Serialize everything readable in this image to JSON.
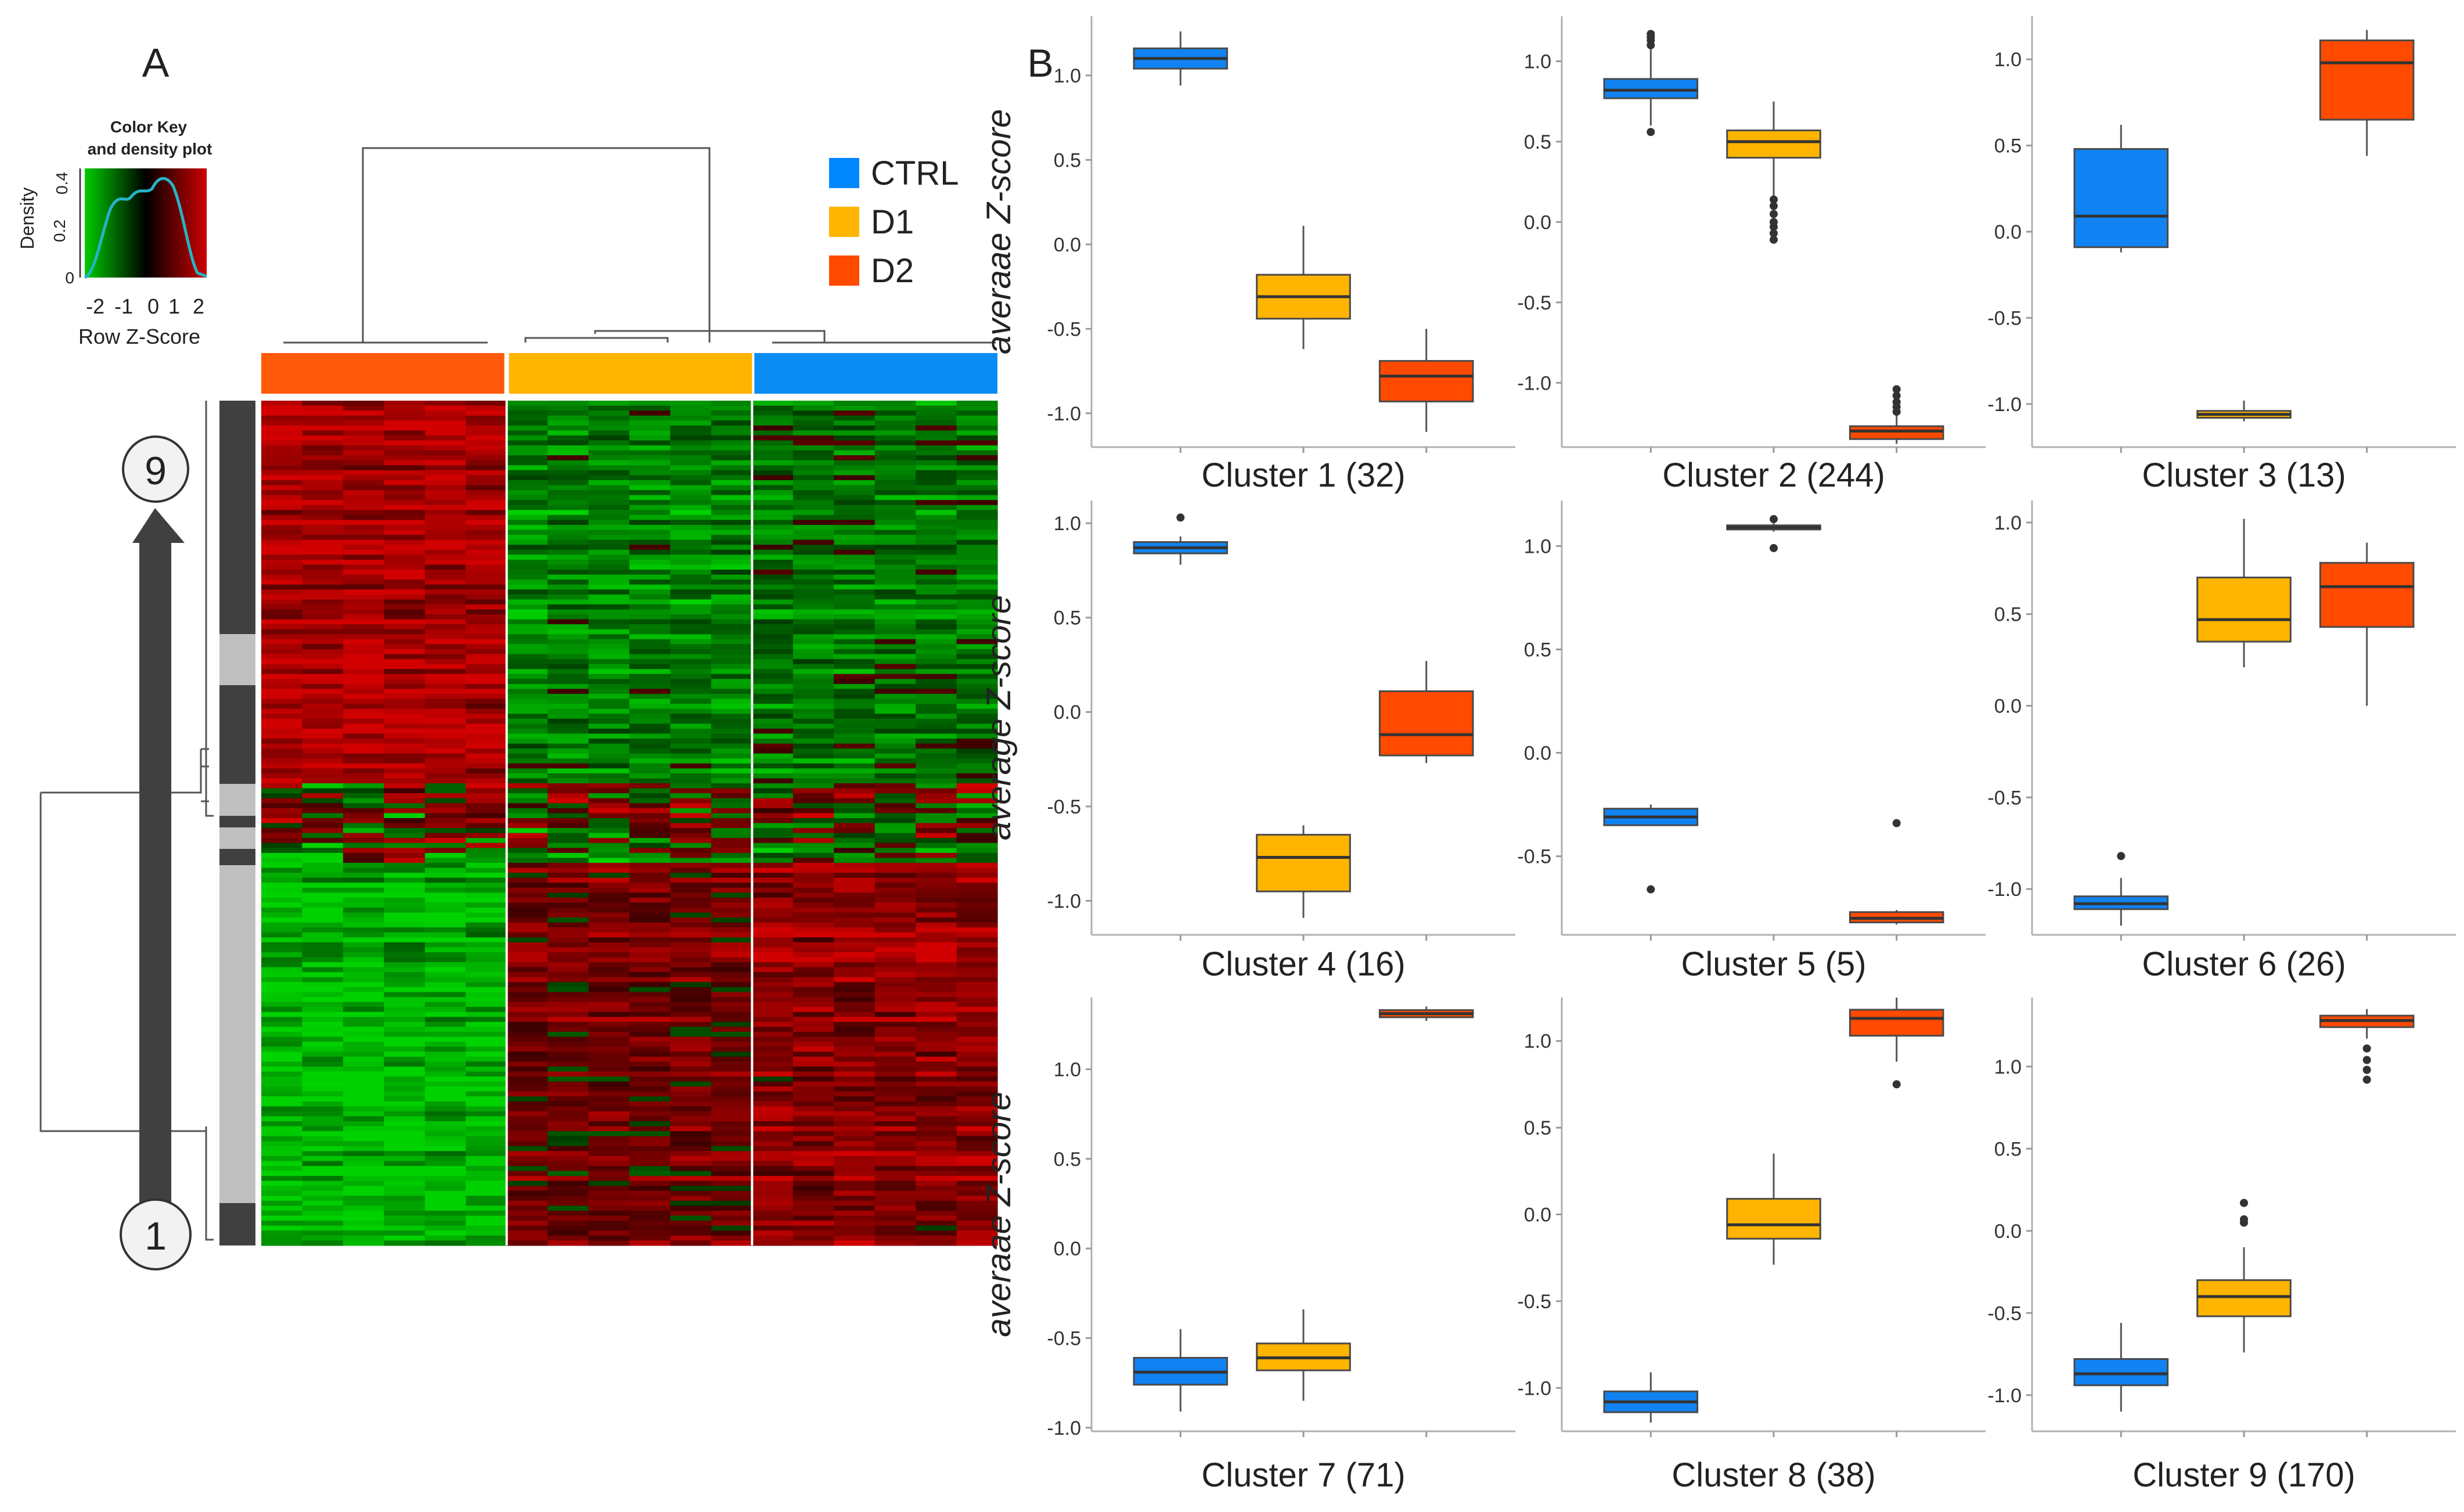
{
  "panel_a": {
    "label": "A",
    "color_key": {
      "title_line1": "Color Key",
      "title_line2": "and density plot",
      "ylabel": "Density",
      "xlabel": "Row Z-Score",
      "x_ticks": [
        "-2",
        "-1",
        "0",
        "1",
        "2"
      ],
      "y_ticks": [
        "0",
        "0.2",
        "0.4"
      ],
      "colors": {
        "low": "#00cc00",
        "mid": "#000000",
        "high": "#cc0000"
      }
    },
    "legend": [
      {
        "label": "CTRL",
        "color": "#0088ff"
      },
      {
        "label": "D1",
        "color": "#ffb400"
      },
      {
        "label": "D2",
        "color": "#ff4a00"
      }
    ],
    "column_groups": [
      {
        "name": "D2",
        "color": "#ff5a0a",
        "columns": 6
      },
      {
        "name": "D1",
        "color": "#ffb400",
        "columns": 6
      },
      {
        "name": "CTRL",
        "color": "#0a8cf2",
        "columns": 6
      }
    ],
    "arrow": {
      "top_label": "9",
      "bottom_label": "1"
    }
  },
  "panel_b": {
    "label": "B",
    "ylabel_main": "average Z-score",
    "ylabel_alt": "averaae Z-score",
    "group_colors": {
      "CTRL": "#1182f1",
      "D1": "#ffb400",
      "D2": "#ff4a00"
    }
  },
  "chart_data": [
    {
      "type": "boxplot",
      "title": "Cluster 1 (32)",
      "ylabel": "averaae Z-score",
      "ylim": [
        -1.2,
        1.35
      ],
      "yticks": [
        -1.0,
        -0.5,
        0.0,
        0.5,
        1.0
      ],
      "categories": [
        "CTRL",
        "D1",
        "D2"
      ],
      "boxes": [
        {
          "group": "CTRL",
          "q1": 1.04,
          "median": 1.1,
          "q3": 1.16,
          "whisker_low": 0.94,
          "whisker_high": 1.26,
          "outliers": []
        },
        {
          "group": "D1",
          "q1": -0.44,
          "median": -0.31,
          "q3": -0.18,
          "whisker_low": -0.62,
          "whisker_high": 0.11,
          "outliers": []
        },
        {
          "group": "D2",
          "q1": -0.93,
          "median": -0.78,
          "q3": -0.69,
          "whisker_low": -1.11,
          "whisker_high": -0.5,
          "outliers": []
        }
      ]
    },
    {
      "type": "boxplot",
      "title": "Cluster 2 (244)",
      "ylabel": "",
      "ylim": [
        -1.4,
        1.28
      ],
      "yticks": [
        -1.0,
        -0.5,
        0.0,
        0.5,
        1.0
      ],
      "categories": [
        "CTRL",
        "D1",
        "D2"
      ],
      "boxes": [
        {
          "group": "CTRL",
          "q1": 0.77,
          "median": 0.82,
          "q3": 0.89,
          "whisker_low": 0.6,
          "whisker_high": 1.08,
          "outliers": [
            0.56,
            1.1,
            1.13,
            1.15,
            1.17
          ]
        },
        {
          "group": "D1",
          "q1": 0.4,
          "median": 0.5,
          "q3": 0.57,
          "whisker_low": 0.16,
          "whisker_high": 0.75,
          "outliers": [
            0.14,
            0.1,
            0.05,
            0.0,
            -0.03,
            -0.07,
            -0.11
          ]
        },
        {
          "group": "D2",
          "q1": -1.35,
          "median": -1.3,
          "q3": -1.27,
          "whisker_low": -1.38,
          "whisker_high": -1.2,
          "outliers": [
            -1.18,
            -1.15,
            -1.12,
            -1.08,
            -1.04
          ]
        }
      ]
    },
    {
      "type": "boxplot",
      "title": "Cluster 3 (13)",
      "ylabel": "",
      "ylim": [
        -1.25,
        1.25
      ],
      "yticks": [
        -1.0,
        -0.5,
        0.0,
        0.5,
        1.0
      ],
      "categories": [
        "CTRL",
        "D1",
        "D2"
      ],
      "boxes": [
        {
          "group": "CTRL",
          "q1": -0.09,
          "median": 0.09,
          "q3": 0.48,
          "whisker_low": -0.12,
          "whisker_high": 0.62,
          "outliers": []
        },
        {
          "group": "D1",
          "q1": -1.08,
          "median": -1.06,
          "q3": -1.04,
          "whisker_low": -1.1,
          "whisker_high": -0.98,
          "outliers": []
        },
        {
          "group": "D2",
          "q1": 0.65,
          "median": 0.98,
          "q3": 1.11,
          "whisker_low": 0.44,
          "whisker_high": 1.17,
          "outliers": []
        }
      ]
    },
    {
      "type": "boxplot",
      "title": "Cluster 4  (16)",
      "ylabel": "average Z-score",
      "ylim": [
        -1.18,
        1.12
      ],
      "yticks": [
        -1.0,
        -0.5,
        0.0,
        0.5,
        1.0
      ],
      "categories": [
        "CTRL",
        "D1",
        "D2"
      ],
      "boxes": [
        {
          "group": "CTRL",
          "q1": 0.84,
          "median": 0.87,
          "q3": 0.9,
          "whisker_low": 0.78,
          "whisker_high": 0.93,
          "outliers": [
            1.03
          ]
        },
        {
          "group": "D1",
          "q1": -0.95,
          "median": -0.77,
          "q3": -0.65,
          "whisker_low": -1.09,
          "whisker_high": -0.6,
          "outliers": []
        },
        {
          "group": "D2",
          "q1": -0.23,
          "median": -0.12,
          "q3": 0.11,
          "whisker_low": -0.27,
          "whisker_high": 0.27,
          "outliers": []
        }
      ]
    },
    {
      "type": "boxplot",
      "title": "Cluster 5 (5)",
      "ylabel": "",
      "ylim": [
        -0.88,
        1.22
      ],
      "yticks": [
        -0.5,
        0.0,
        0.5,
        1.0
      ],
      "categories": [
        "CTRL",
        "D1",
        "D2"
      ],
      "boxes": [
        {
          "group": "CTRL",
          "q1": -0.35,
          "median": -0.31,
          "q3": -0.27,
          "whisker_low": -0.35,
          "whisker_high": -0.25,
          "outliers": [
            -0.66
          ]
        },
        {
          "group": "D1",
          "q1": 1.08,
          "median": 1.09,
          "q3": 1.1,
          "whisker_low": 1.07,
          "whisker_high": 1.11,
          "outliers": [
            0.99,
            1.13
          ]
        },
        {
          "group": "D2",
          "q1": -0.82,
          "median": -0.8,
          "q3": -0.77,
          "whisker_low": -0.83,
          "whisker_high": -0.76,
          "outliers": [
            -0.34
          ]
        }
      ]
    },
    {
      "type": "boxplot",
      "title": "Cluster 6 (26)",
      "ylabel": "",
      "ylim": [
        -1.25,
        1.12
      ],
      "yticks": [
        -1.0,
        -0.5,
        0.0,
        0.5,
        1.0
      ],
      "categories": [
        "CTRL",
        "D1",
        "D2"
      ],
      "boxes": [
        {
          "group": "CTRL",
          "q1": -1.11,
          "median": -1.08,
          "q3": -1.04,
          "whisker_low": -1.2,
          "whisker_high": -0.94,
          "outliers": [
            -0.82
          ]
        },
        {
          "group": "D1",
          "q1": 0.35,
          "median": 0.47,
          "q3": 0.7,
          "whisker_low": 0.21,
          "whisker_high": 1.02,
          "outliers": []
        },
        {
          "group": "D2",
          "q1": 0.43,
          "median": 0.65,
          "q3": 0.78,
          "whisker_low": 0.0,
          "whisker_high": 0.89,
          "outliers": []
        }
      ]
    },
    {
      "type": "boxplot",
      "title": "Cluster 7 (71)",
      "ylabel": "averaae Z-score",
      "ylim": [
        -1.02,
        1.4
      ],
      "yticks": [
        -1.0,
        -0.5,
        0.0,
        0.5,
        1.0
      ],
      "categories": [
        "CTRL",
        "D1",
        "D2"
      ],
      "boxes": [
        {
          "group": "CTRL",
          "q1": -0.76,
          "median": -0.69,
          "q3": -0.61,
          "whisker_low": -0.91,
          "whisker_high": -0.45,
          "outliers": []
        },
        {
          "group": "D1",
          "q1": -0.68,
          "median": -0.61,
          "q3": -0.53,
          "whisker_low": -0.85,
          "whisker_high": -0.34,
          "outliers": []
        },
        {
          "group": "D2",
          "q1": 1.29,
          "median": 1.31,
          "q3": 1.33,
          "whisker_low": 1.27,
          "whisker_high": 1.35,
          "outliers": []
        }
      ]
    },
    {
      "type": "boxplot",
      "title": "Cluster 8 (38)",
      "ylabel": "",
      "ylim": [
        -1.25,
        1.25
      ],
      "yticks": [
        -1.0,
        -0.5,
        0.0,
        0.5,
        1.0
      ],
      "categories": [
        "CTRL",
        "D1",
        "D2"
      ],
      "boxes": [
        {
          "group": "CTRL",
          "q1": -1.14,
          "median": -1.08,
          "q3": -1.02,
          "whisker_low": -1.2,
          "whisker_high": -0.91,
          "outliers": []
        },
        {
          "group": "D1",
          "q1": -0.14,
          "median": -0.06,
          "q3": 0.09,
          "whisker_low": -0.29,
          "whisker_high": 0.35,
          "outliers": []
        },
        {
          "group": "D2",
          "q1": 1.03,
          "median": 1.13,
          "q3": 1.18,
          "whisker_low": 0.88,
          "whisker_high": 1.25,
          "outliers": [
            0.75
          ]
        }
      ]
    },
    {
      "type": "boxplot",
      "title": "Cluster 9 (170)",
      "ylabel": "",
      "ylim": [
        -1.22,
        1.42
      ],
      "yticks": [
        -1.0,
        -0.5,
        0.0,
        0.5,
        1.0
      ],
      "categories": [
        "CTRL",
        "D1",
        "D2"
      ],
      "boxes": [
        {
          "group": "CTRL",
          "q1": -0.94,
          "median": -0.87,
          "q3": -0.78,
          "whisker_low": -1.1,
          "whisker_high": -0.56,
          "outliers": []
        },
        {
          "group": "D1",
          "q1": -0.52,
          "median": -0.4,
          "q3": -0.3,
          "whisker_low": -0.74,
          "whisker_high": -0.1,
          "outliers": [
            0.05,
            0.07,
            0.17
          ]
        },
        {
          "group": "D2",
          "q1": 1.24,
          "median": 1.28,
          "q3": 1.31,
          "whisker_low": 1.17,
          "whisker_high": 1.35,
          "outliers": [
            1.11,
            1.04,
            0.98,
            0.92
          ]
        }
      ]
    }
  ]
}
